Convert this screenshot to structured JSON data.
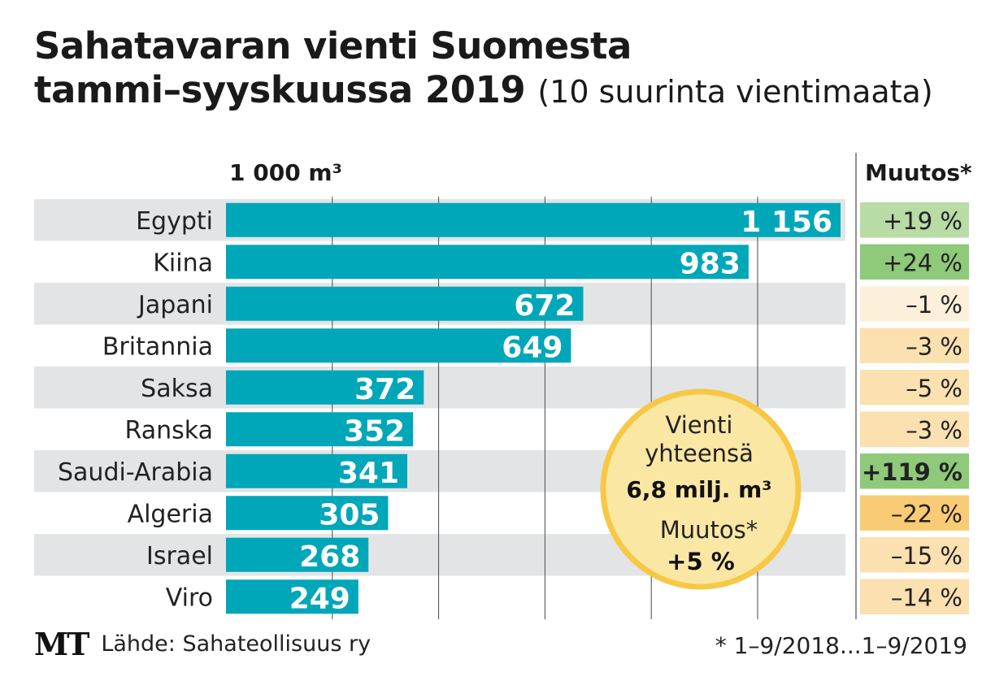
{
  "title": {
    "line1": "Sahatavaran vienti Suomesta",
    "line2": "tammi–syyskuussa 2019",
    "subtitle": "(10 suurinta vientimaata)"
  },
  "unit_label": "1 000 m³",
  "change_header": "Muutos*",
  "source": {
    "logo": "MT",
    "text": "Lähde: Sahateollisuus ry"
  },
  "footnote": "* 1–9/2018...1–9/2019",
  "callout": {
    "line1": "Vienti",
    "line2": "yhteensä",
    "total": "6,8 milj. m³",
    "change_label": "Muutos*",
    "change_value": "+5 %"
  },
  "colors": {
    "bar": "#00a7b8",
    "stripe": "#e3e4e6",
    "callout_fill": "#fbe7a4",
    "callout_border": "#f6c845",
    "positive_change": "#8fc97a",
    "positive_change_light": "#b9dba6",
    "negative_small": "#fdf0da",
    "negative_medium": "#fbe0b0",
    "negative_large": "#f9cb75"
  },
  "chart_data": {
    "type": "bar",
    "orientation": "horizontal",
    "categories": [
      "Egypti",
      "Kiina",
      "Japani",
      "Britannia",
      "Saksa",
      "Ranska",
      "Saudi-Arabia",
      "Algeria",
      "Israel",
      "Viro"
    ],
    "values": [
      1156,
      983,
      672,
      649,
      372,
      352,
      341,
      305,
      268,
      249
    ],
    "value_labels": [
      "1 156",
      "983",
      "672",
      "649",
      "372",
      "352",
      "341",
      "305",
      "268",
      "249"
    ],
    "changes": [
      "+19 %",
      "+24 %",
      "–1 %",
      "–3 %",
      "–5 %",
      "–3 %",
      "+119 %",
      "–22 %",
      "–15 %",
      "–14 %"
    ],
    "change_percent": [
      19,
      24,
      -1,
      -3,
      -5,
      -3,
      119,
      -22,
      -15,
      -14
    ],
    "xlabel": "1 000 m³",
    "xlim": [
      0,
      1200
    ],
    "grid": true
  }
}
